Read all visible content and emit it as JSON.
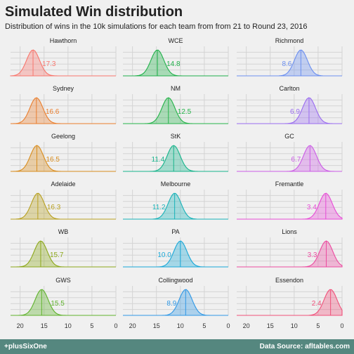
{
  "chart_data": {
    "type": "area",
    "title": "Simulated Win distribution",
    "subtitle": "Distribution of wins in the 10k simulations for each team from from 21 to Round 23, 2016",
    "x_reversed": true,
    "xlim": [
      22,
      0
    ],
    "x_ticks": [
      "20",
      "15",
      "10",
      "5",
      "0"
    ],
    "grid": true,
    "panels": [
      {
        "team": "Hawthorn",
        "mean": 17.3,
        "label": "17.3",
        "color": "#f8766d"
      },
      {
        "team": "WCE",
        "mean": 14.8,
        "label": "14.8",
        "color": "#21b14b"
      },
      {
        "team": "Richmond",
        "mean": 8.6,
        "label": "8.6",
        "color": "#6b8ff0"
      },
      {
        "team": "Sydney",
        "mean": 16.6,
        "label": "16.6",
        "color": "#ea7e2d"
      },
      {
        "team": "NM",
        "mean": 12.5,
        "label": "12.5",
        "color": "#26b34a"
      },
      {
        "team": "Carlton",
        "mean": 6.9,
        "label": "6.9",
        "color": "#9a6cf0"
      },
      {
        "team": "Geelong",
        "mean": 16.5,
        "label": "16.5",
        "color": "#d98d1e"
      },
      {
        "team": "StK",
        "mean": 11.4,
        "label": "11.4",
        "color": "#18b48c"
      },
      {
        "team": "GC",
        "mean": 6.7,
        "label": "6.7",
        "color": "#cc5ce6"
      },
      {
        "team": "Adelaide",
        "mean": 16.3,
        "label": "16.3",
        "color": "#b8a020"
      },
      {
        "team": "Melbourne",
        "mean": 11.2,
        "label": "11.2",
        "color": "#18b2b8"
      },
      {
        "team": "Fremantle",
        "mean": 3.4,
        "label": "3.4",
        "color": "#e74bd6"
      },
      {
        "team": "WB",
        "mean": 15.7,
        "label": "15.7",
        "color": "#8ca81a"
      },
      {
        "team": "PA",
        "mean": 10.0,
        "label": "10.0",
        "color": "#19a8d8"
      },
      {
        "team": "Lions",
        "mean": 3.3,
        "label": "3.3",
        "color": "#ec4ba0"
      },
      {
        "team": "GWS",
        "mean": 15.5,
        "label": "15.5",
        "color": "#5fb22c"
      },
      {
        "team": "Collingwood",
        "mean": 8.9,
        "label": "8.9",
        "color": "#2f98e6"
      },
      {
        "team": "Essendon",
        "mean": 2.4,
        "label": "2.4",
        "color": "#f0507a"
      }
    ]
  },
  "footer": {
    "left": "+plusSixOne",
    "right": "Data Source: afltables.com"
  }
}
